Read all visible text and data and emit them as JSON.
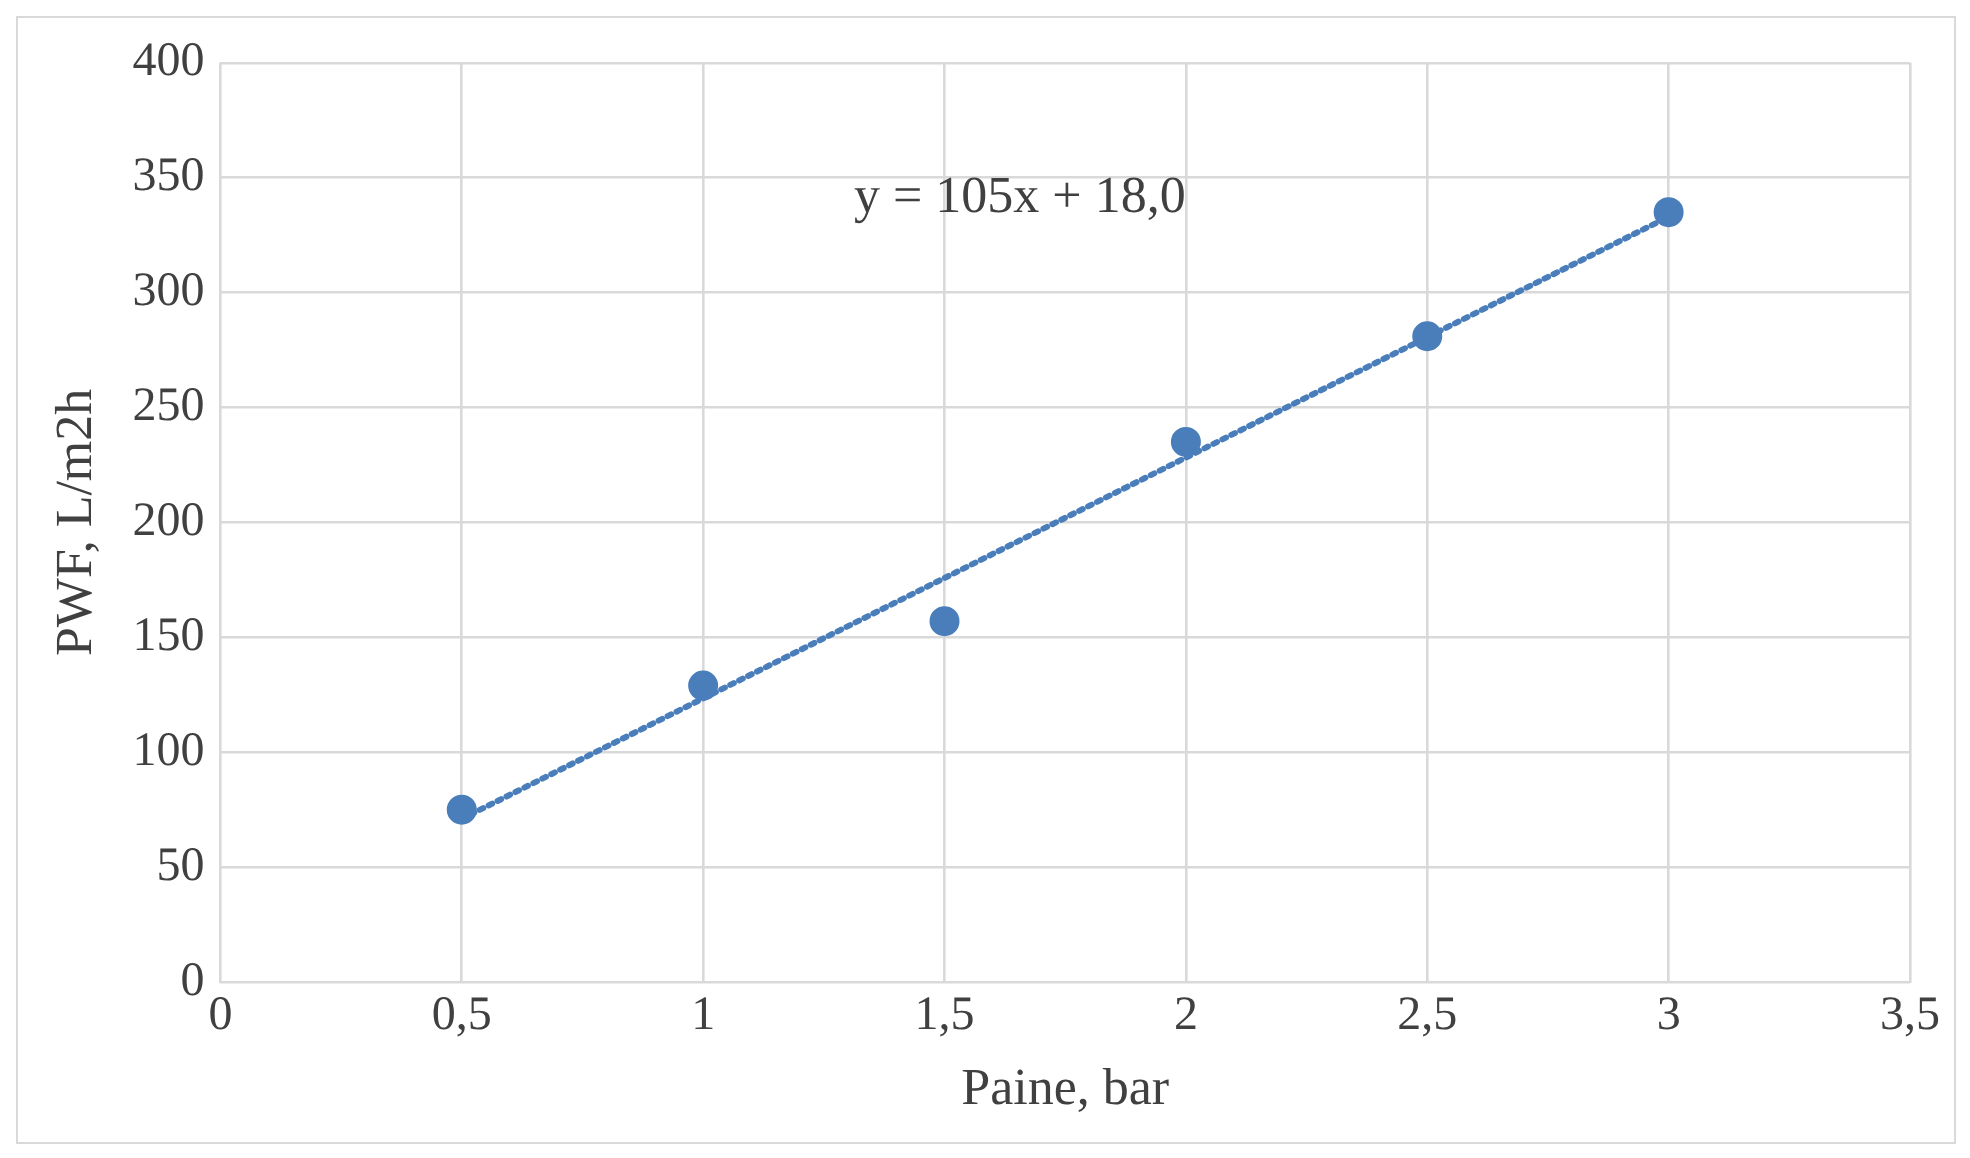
{
  "chart_data": {
    "type": "scatter",
    "xlabel": "Paine, bar",
    "ylabel": "PWF, L/m2h",
    "annotations": [
      "y = 105x + 18,0"
    ],
    "series": [
      {
        "type": "scatter",
        "color": "#4a7ebb",
        "x": [
          0.5,
          1,
          1.5,
          2,
          2.5,
          3
        ],
        "values": [
          75,
          129,
          157,
          235,
          281,
          335
        ],
        "marker": "circle"
      },
      {
        "type": "line",
        "color": "#4a7ebb",
        "x": [
          0.5,
          3
        ],
        "values": [
          71,
          333
        ],
        "line_style": "dotted",
        "marker": "none"
      }
    ],
    "xlim": [
      0,
      3.5
    ],
    "xticks": [
      0,
      {
        "value": 0.5,
        "label": "0,5"
      },
      1,
      {
        "value": 1.5,
        "label": "1,5"
      },
      2,
      {
        "value": 2.5,
        "label": "2,5"
      },
      3,
      {
        "value": 3.5,
        "label": "3,5"
      }
    ],
    "ylim": [
      0,
      400
    ],
    "yticks": [
      0,
      50,
      100,
      150,
      200,
      250,
      300,
      350,
      400
    ],
    "grid": true,
    "legend": false
  }
}
